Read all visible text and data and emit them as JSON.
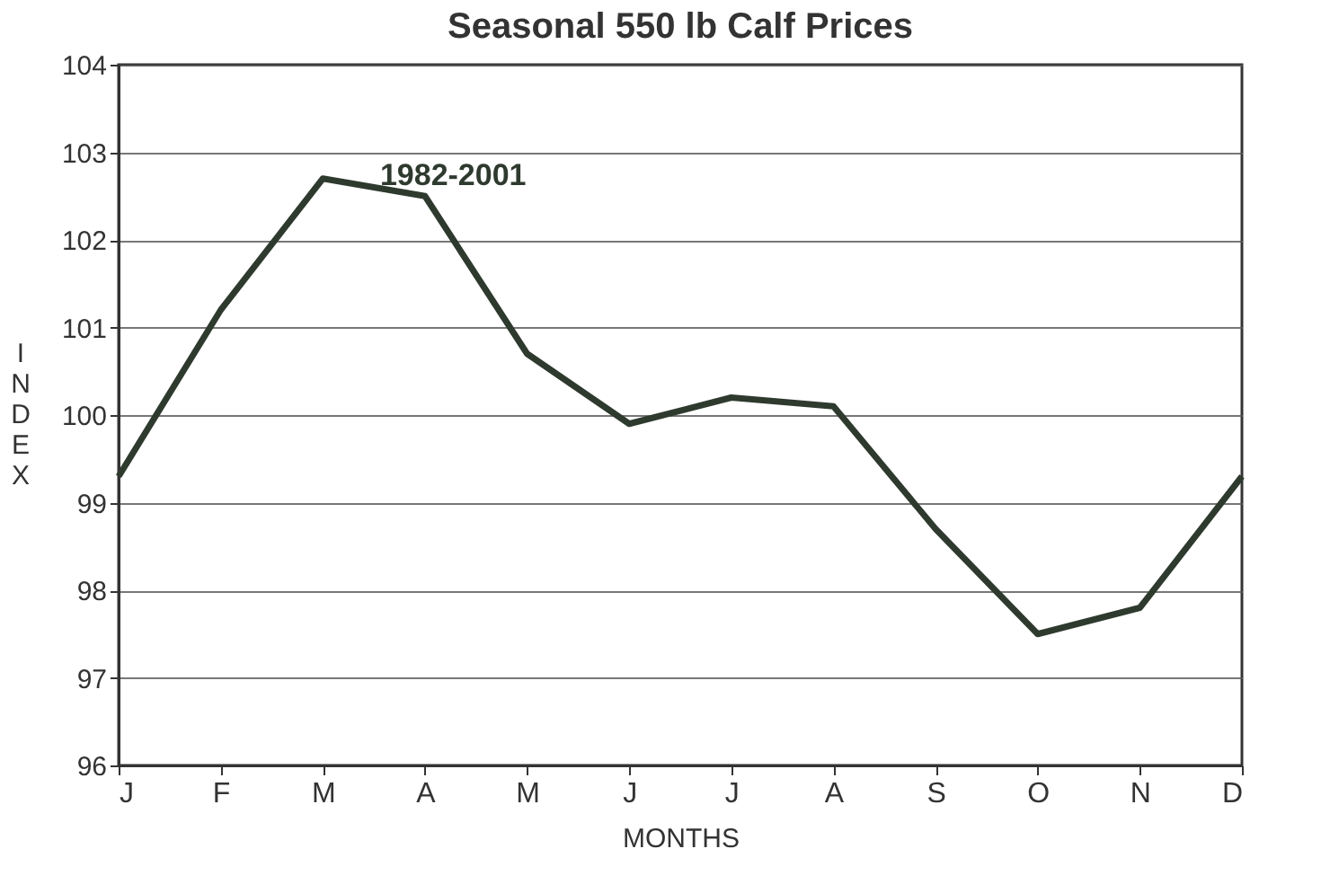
{
  "chart_data": {
    "type": "line",
    "title": "Seasonal 550 lb Calf Prices",
    "xlabel": "MONTHS",
    "ylabel": "INDEX",
    "categories": [
      "J",
      "F",
      "M",
      "A",
      "M",
      "J",
      "J",
      "A",
      "S",
      "O",
      "N",
      "D"
    ],
    "series": [
      {
        "name": "1982-2001",
        "color": "#2f3a2f",
        "values": [
          99.3,
          101.2,
          102.7,
          102.5,
          100.7,
          99.9,
          100.2,
          100.1,
          98.7,
          97.5,
          97.8,
          99.3
        ]
      }
    ],
    "ylim": [
      96,
      104
    ],
    "yticks": [
      96,
      97,
      98,
      99,
      100,
      101,
      102,
      103,
      104
    ],
    "grid": "y",
    "marker": "none",
    "line_style": "solid"
  }
}
